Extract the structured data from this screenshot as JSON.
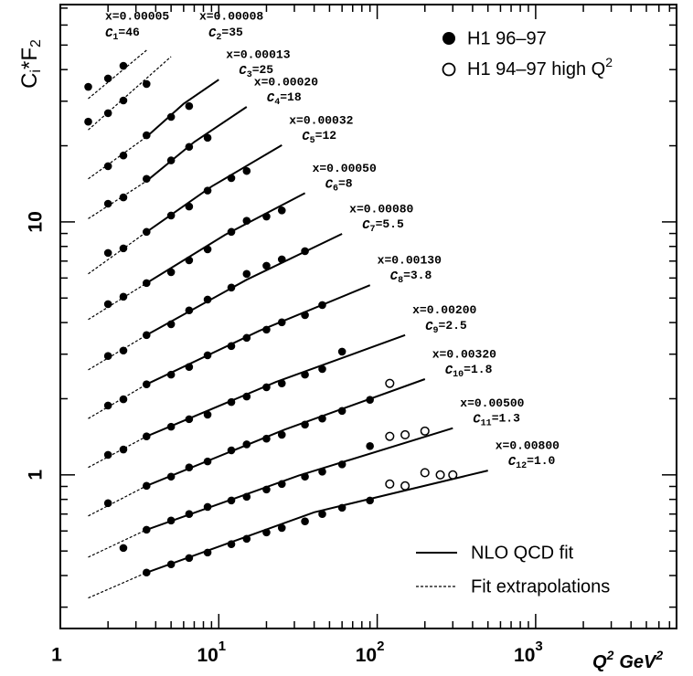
{
  "chart_data": {
    "type": "scatter",
    "color": "#000000",
    "log_x": true,
    "log_y": true,
    "x_label": [
      "Q",
      "2",
      "GeV",
      "2"
    ],
    "y_label": [
      "C",
      "i",
      "*F",
      "2"
    ],
    "xlim": [
      1,
      7750
    ],
    "ylim": [
      0.247,
      72.3
    ],
    "xticks": [
      1,
      {
        "value": 10,
        "label": "10",
        "exponent": "1"
      },
      {
        "value": 100,
        "label": "10",
        "exponent": "2"
      },
      {
        "value": 1000,
        "label": "10",
        "exponent": "3"
      }
    ],
    "xminor": [
      2,
      3,
      4,
      5,
      6,
      7,
      8,
      9,
      20,
      30,
      40,
      50,
      60,
      70,
      80,
      90,
      200,
      300,
      400,
      500,
      600,
      700,
      800,
      900,
      2000,
      3000,
      4000,
      5000,
      6000,
      7000
    ],
    "yticks": [
      1,
      10
    ],
    "yminor": [
      0.3,
      0.4,
      0.5,
      0.6,
      0.7,
      0.8,
      0.9,
      2,
      3,
      4,
      5,
      6,
      7,
      8,
      9,
      20,
      30,
      40,
      50,
      60,
      70
    ],
    "scale_symbol": "C",
    "legend": {
      "position": "upper right",
      "datasets": [
        {
          "name": "H1 96–97",
          "marker": "filled"
        },
        {
          "name": "H1 94–97 high Q",
          "name_sup": "2",
          "marker": "open"
        }
      ]
    },
    "line_legend": {
      "position": "lower right",
      "entries": [
        {
          "name": "NLO QCD fit",
          "style": "solid"
        },
        {
          "name": "Fit extrapolations",
          "style": "dotted"
        }
      ]
    },
    "series": [
      {
        "name": "x=0.00005",
        "c_index": "1",
        "c_text": "=46",
        "x": [
          1.5,
          2,
          2.5
        ],
        "values": [
          34.2,
          36.9,
          41.4
        ],
        "extrapolation": {
          "x": [
            1.5,
            3.5
          ],
          "values": [
            30.7,
            47.7
          ]
        }
      },
      {
        "name": "x=0.00008",
        "c_index": "2",
        "c_text": "=35",
        "x": [
          1.5,
          2,
          2.5,
          3.5
        ],
        "values": [
          24.9,
          26.9,
          30.2,
          35.1
        ],
        "extrapolation": {
          "x": [
            1.5,
            5
          ],
          "values": [
            23.1,
            45.0
          ]
        }
      },
      {
        "name": "x=0.00013",
        "c_index": "3",
        "c_text": "=25",
        "x": [
          2,
          2.5,
          3.5,
          5,
          6.5
        ],
        "values": [
          16.6,
          18.3,
          22.0,
          26.0,
          28.7
        ],
        "extrapolation": {
          "x": [
            1.5,
            3.5
          ],
          "values": [
            14.8,
            21.7
          ]
        },
        "fit": {
          "x": [
            3.5,
            6,
            10
          ],
          "values": [
            21.7,
            29.3,
            36.5
          ]
        }
      },
      {
        "name": "x=0.00020",
        "c_index": "4",
        "c_text": "=18",
        "x": [
          2,
          2.5,
          3.5,
          5,
          6.5,
          8.5
        ],
        "values": [
          11.8,
          12.5,
          14.8,
          17.5,
          19.8,
          21.5
        ],
        "extrapolation": {
          "x": [
            1.5,
            3.5
          ],
          "values": [
            10.3,
            14.5
          ]
        },
        "fit": {
          "x": [
            3.5,
            7,
            15
          ],
          "values": [
            14.5,
            20.7,
            28.5
          ]
        }
      },
      {
        "name": "x=0.00032",
        "c_index": "5",
        "c_text": "=12",
        "x": [
          2,
          2.5,
          3.5,
          5,
          6.5,
          8.5,
          12,
          15
        ],
        "values": [
          7.54,
          7.86,
          9.13,
          10.6,
          11.5,
          13.3,
          14.9,
          15.9
        ],
        "extrapolation": {
          "x": [
            1.5,
            3.5
          ],
          "values": [
            6.23,
            9.13
          ]
        },
        "fit": {
          "x": [
            3.5,
            9,
            25
          ],
          "values": [
            9.13,
            13.8,
            20.1
          ]
        }
      },
      {
        "name": "x=0.00050",
        "c_index": "6",
        "c_text": "=8",
        "x": [
          2,
          2.5,
          3.5,
          5,
          6.5,
          8.5,
          12,
          15,
          20,
          25
        ],
        "values": [
          4.73,
          5.06,
          5.73,
          6.33,
          7.05,
          7.79,
          9.13,
          10.1,
          10.5,
          11.1
        ],
        "extrapolation": {
          "x": [
            1.5,
            3.5
          ],
          "values": [
            4.11,
            5.73
          ]
        },
        "fit": {
          "x": [
            3.5,
            11,
            35
          ],
          "values": [
            5.73,
            8.9,
            13.0
          ]
        }
      },
      {
        "name": "x=0.00080",
        "c_index": "7",
        "c_text": "=5.5",
        "x": [
          2,
          2.5,
          3.5,
          5,
          6.5,
          8.5,
          12,
          15,
          20,
          25,
          35
        ],
        "values": [
          2.95,
          3.1,
          3.57,
          3.94,
          4.47,
          4.93,
          5.5,
          6.23,
          6.71,
          7.11,
          7.66
        ],
        "extrapolation": {
          "x": [
            1.5,
            3.5
          ],
          "values": [
            2.6,
            3.57
          ]
        },
        "fit": {
          "x": [
            3.5,
            15,
            60
          ],
          "values": [
            3.57,
            5.91,
            8.97
          ]
        }
      },
      {
        "name": "x=0.00130",
        "c_index": "8",
        "c_text": "=3.8",
        "x": [
          2,
          2.5,
          3.5,
          5,
          6.5,
          8.5,
          12,
          15,
          20,
          25,
          35,
          45
        ],
        "values": [
          1.88,
          1.99,
          2.28,
          2.49,
          2.67,
          2.97,
          3.23,
          3.48,
          3.75,
          4.01,
          4.28,
          4.69
        ],
        "extrapolation": {
          "x": [
            1.5,
            3.5
          ],
          "values": [
            1.67,
            2.28
          ]
        },
        "fit": {
          "x": [
            3.5,
            18,
            90
          ],
          "values": [
            2.28,
            3.71,
            5.62
          ]
        }
      },
      {
        "name": "x=0.00200",
        "c_index": "9",
        "c_text": "=2.5",
        "x": [
          2,
          2.5,
          3.5,
          5,
          6.5,
          8.5,
          12,
          15,
          20,
          25,
          35,
          45,
          60
        ],
        "values": [
          1.2,
          1.26,
          1.42,
          1.55,
          1.66,
          1.73,
          1.94,
          2.04,
          2.22,
          2.3,
          2.49,
          2.62,
          3.07
        ],
        "extrapolation": {
          "x": [
            1.5,
            3.5
          ],
          "values": [
            1.07,
            1.42
          ]
        },
        "fit": {
          "x": [
            3.5,
            23,
            150
          ],
          "values": [
            1.42,
            2.33,
            3.57
          ]
        }
      },
      {
        "name": "x=0.00320",
        "c_index": "10",
        "c_text": "=1.8",
        "x": [
          2,
          3.5,
          5,
          6.5,
          8.5,
          12,
          15,
          20,
          25,
          35,
          45,
          60,
          90
        ],
        "values": [
          0.773,
          0.905,
          0.984,
          1.07,
          1.13,
          1.25,
          1.32,
          1.39,
          1.44,
          1.58,
          1.67,
          1.79,
          1.98
        ],
        "high_q2": {
          "x": [
            120
          ],
          "values": [
            2.3
          ]
        },
        "extrapolation": {
          "x": [
            1.5,
            3.5
          ],
          "values": [
            0.688,
            0.905
          ]
        },
        "fit": {
          "x": [
            3.5,
            26,
            200
          ],
          "values": [
            0.905,
            1.51,
            2.39
          ]
        }
      },
      {
        "name": "x=0.00500",
        "c_index": "11",
        "c_text": "=1.3",
        "x": [
          2.5,
          3.5,
          5,
          6.5,
          8.5,
          12,
          15,
          20,
          25,
          35,
          45,
          60,
          90
        ],
        "values": [
          0.514,
          0.607,
          0.66,
          0.7,
          0.747,
          0.792,
          0.819,
          0.875,
          0.92,
          0.984,
          1.03,
          1.1,
          1.3
        ],
        "high_q2": {
          "x": [
            120,
            150,
            200
          ],
          "values": [
            1.42,
            1.44,
            1.49
          ]
        },
        "extrapolation": {
          "x": [
            1.5,
            3.5
          ],
          "values": [
            0.473,
            0.607
          ]
        },
        "fit": {
          "x": [
            3.5,
            32,
            300
          ],
          "values": [
            0.607,
            0.994,
            1.53
          ]
        }
      },
      {
        "name": "x=0.00800",
        "c_index": "12",
        "c_text": "=1.0",
        "x": [
          3.5,
          5,
          6.5,
          8.5,
          12,
          15,
          20,
          25,
          35,
          45,
          60,
          90
        ],
        "values": [
          0.411,
          0.443,
          0.469,
          0.493,
          0.532,
          0.559,
          0.592,
          0.617,
          0.655,
          0.7,
          0.741,
          0.792
        ],
        "high_q2": {
          "x": [
            120,
            150,
            200,
            250,
            300
          ],
          "values": [
            0.92,
            0.905,
            1.02,
            1.0,
            1.0
          ]
        },
        "extrapolation": {
          "x": [
            1.5,
            3.5
          ],
          "values": [
            0.326,
            0.411
          ]
        },
        "fit": {
          "x": [
            3.5,
            40,
            500
          ],
          "values": [
            0.411,
            0.711,
            1.04
          ]
        }
      }
    ]
  }
}
